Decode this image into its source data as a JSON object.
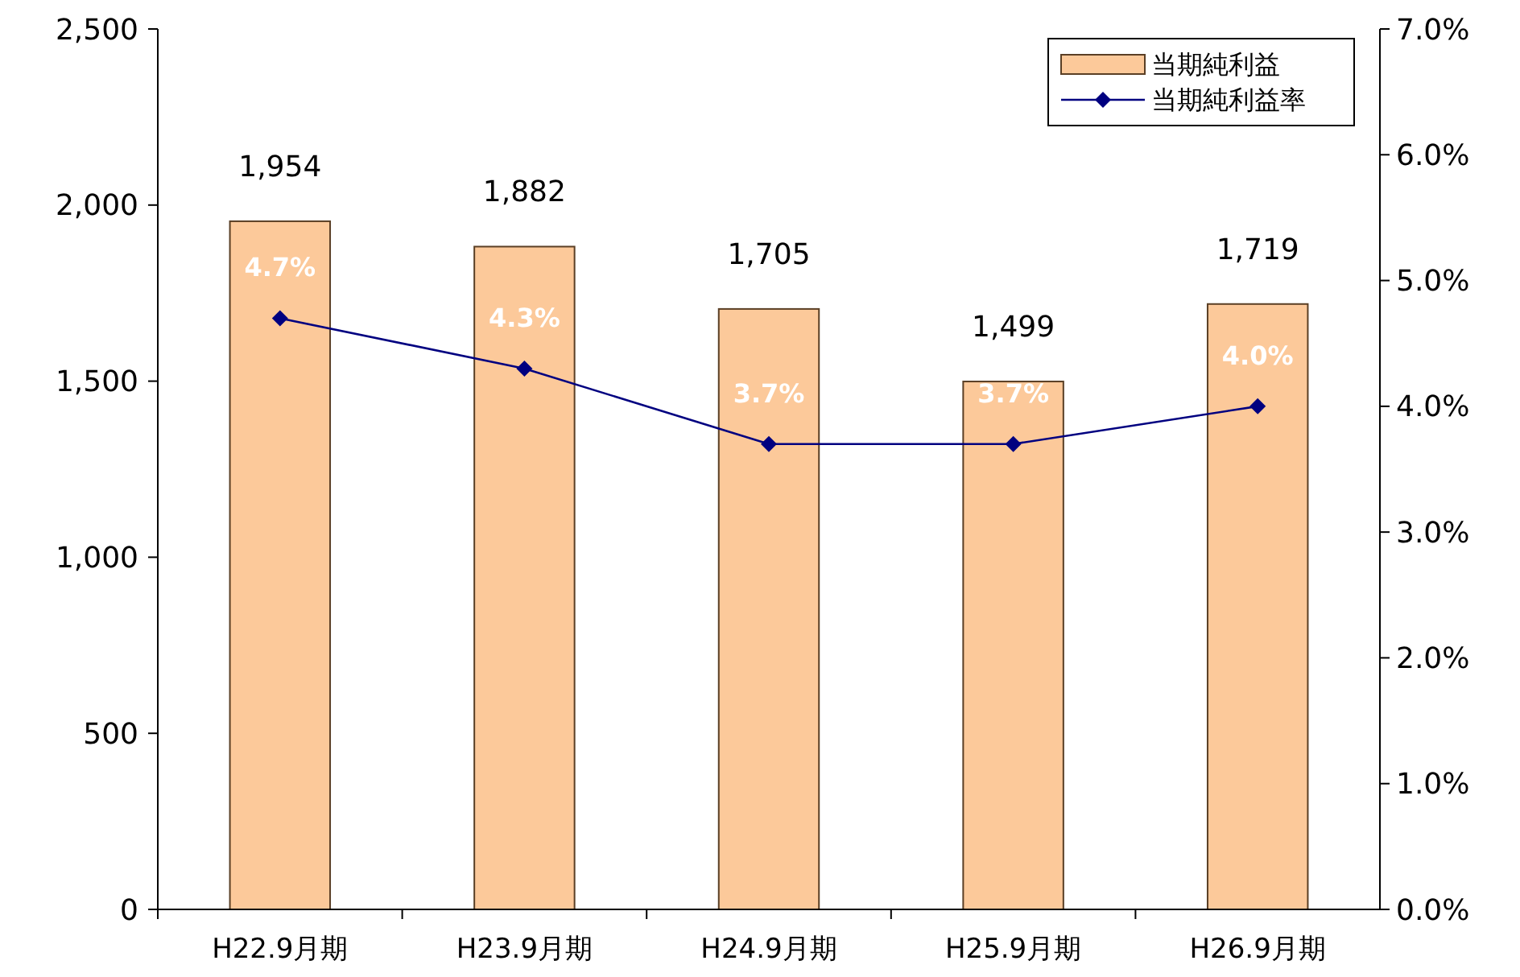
{
  "chart_data": {
    "type": "bar",
    "categories": [
      "H22.9月期",
      "H23.9月期",
      "H24.9月期",
      "H25.9月期",
      "H26.9月期"
    ],
    "series": [
      {
        "name": "当期純利益",
        "color": "#fcc99a",
        "values": [
          1954,
          1882,
          1705,
          1499,
          1719
        ],
        "value_labels": [
          "1,954",
          "1,882",
          "1,705",
          "1,499",
          "1,719"
        ]
      },
      {
        "name": "当期純利益率",
        "type": "line",
        "axis": "y2",
        "color": "#000080",
        "values": [
          4.7,
          4.3,
          3.7,
          3.7,
          4.0
        ],
        "value_labels": [
          "4.7%",
          "4.3%",
          "3.7%",
          "3.7%",
          "4.0%"
        ]
      }
    ],
    "ylim": [
      0,
      2500
    ],
    "yticks": [
      0,
      500,
      {
        "value": 1000,
        "label": "1,000"
      },
      {
        "value": 1500,
        "label": "1,500"
      },
      {
        "value": 2000,
        "label": "2,000"
      },
      {
        "value": 2500,
        "label": "2,500"
      }
    ],
    "y2lim": [
      0,
      7
    ],
    "y2ticks": [
      {
        "value": 0,
        "label": "0.0%"
      },
      {
        "value": 1,
        "label": "1.0%"
      },
      {
        "value": 2,
        "label": "2.0%"
      },
      {
        "value": 3,
        "label": "3.0%"
      },
      {
        "value": 4,
        "label": "4.0%"
      },
      {
        "value": 5,
        "label": "5.0%"
      },
      {
        "value": 6,
        "label": "6.0%"
      },
      {
        "value": 7,
        "label": "7.0%"
      }
    ],
    "marker": "diamond",
    "legend": "top right",
    "grid": false
  }
}
